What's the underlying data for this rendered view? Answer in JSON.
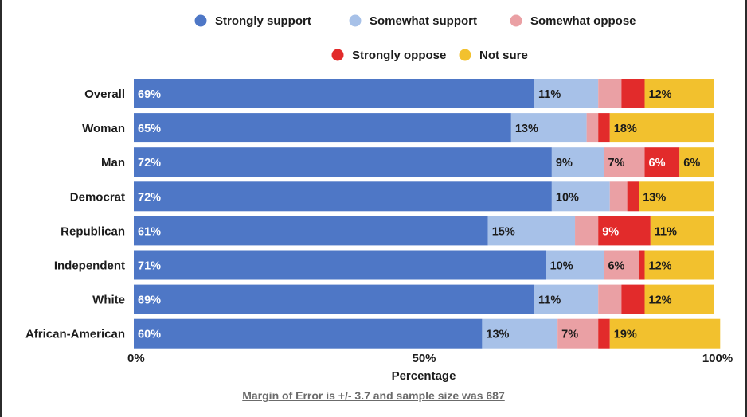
{
  "chart_data": {
    "type": "bar",
    "orientation": "horizontal",
    "stacked": true,
    "categories": [
      "Overall",
      "Woman",
      "Man",
      "Democrat",
      "Republican",
      "Independent",
      "White",
      "African-American"
    ],
    "series": [
      {
        "name": "Strongly support",
        "color": "#4e77c6",
        "values": [
          69,
          65,
          72,
          72,
          61,
          71,
          69,
          60
        ]
      },
      {
        "name": "Somewhat support",
        "color": "#a7c1e8",
        "values": [
          11,
          13,
          9,
          10,
          15,
          10,
          11,
          13
        ]
      },
      {
        "name": "Somewhat oppose",
        "color": "#eaa0a4",
        "values": [
          4,
          2,
          7,
          3,
          4,
          6,
          4,
          7
        ]
      },
      {
        "name": "Strongly oppose",
        "color": "#e22b2b",
        "values": [
          4,
          2,
          6,
          2,
          9,
          1,
          4,
          2
        ]
      },
      {
        "name": "Not sure",
        "color": "#f2c12e",
        "values": [
          12,
          18,
          6,
          13,
          11,
          12,
          12,
          19
        ]
      }
    ],
    "data_labels": [
      [
        "69%",
        "11%",
        "",
        "",
        "12%"
      ],
      [
        "65%",
        "13%",
        "",
        "",
        "18%"
      ],
      [
        "72%",
        "9%",
        "7%",
        "6%",
        "6%"
      ],
      [
        "72%",
        "10%",
        "",
        "",
        "13%"
      ],
      [
        "61%",
        "15%",
        "",
        "9%",
        "11%"
      ],
      [
        "71%",
        "10%",
        "6%",
        "",
        "12%"
      ],
      [
        "69%",
        "11%",
        "",
        "",
        "12%"
      ],
      [
        "60%",
        "13%",
        "7%",
        "",
        "19%"
      ]
    ],
    "xlabel": "Percentage",
    "xlim": [
      0,
      100
    ],
    "x_ticks": [
      0,
      50,
      100
    ],
    "x_tick_labels": [
      "0%",
      "50%",
      "100%"
    ],
    "legend_position": "top-center"
  },
  "footnote": "Margin of Error is +/- 3.7 and sample size was 687"
}
